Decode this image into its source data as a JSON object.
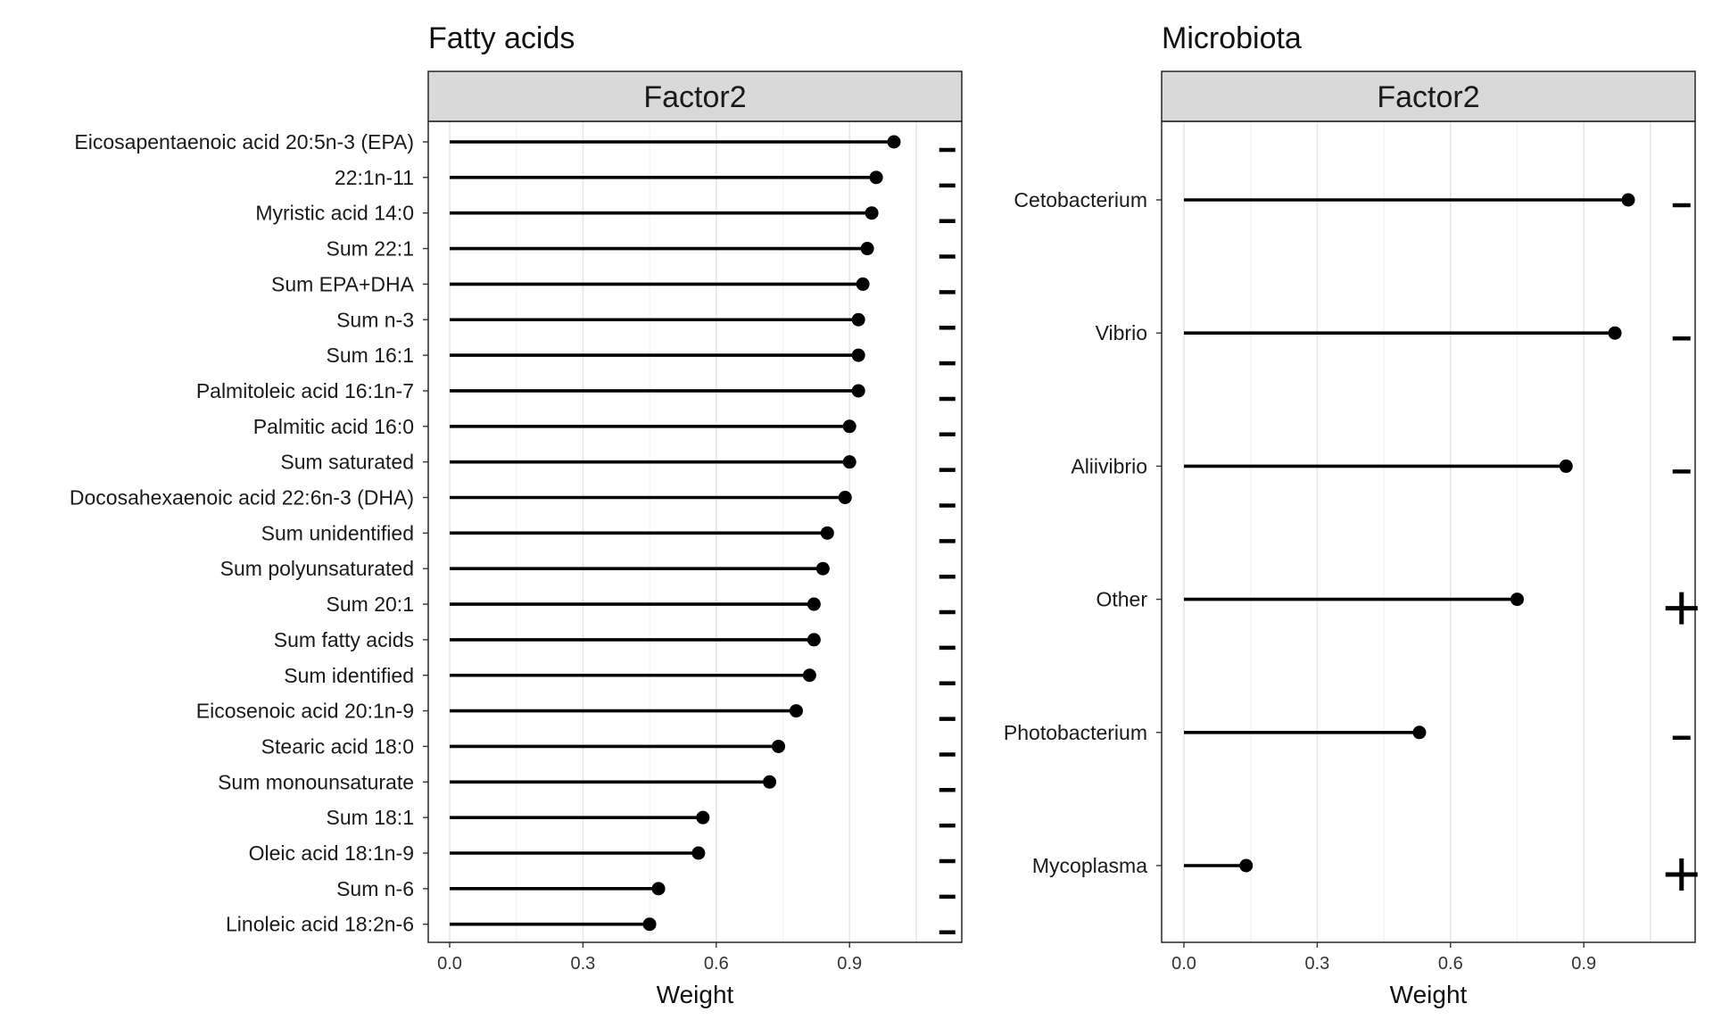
{
  "chart_data": [
    {
      "type": "lollipop",
      "title": "Fatty acids",
      "facet": "Factor2",
      "xlabel": "Weight",
      "ylabel": "",
      "xlim": [
        -0.05,
        1.15
      ],
      "xticks": [
        0.0,
        0.3,
        0.6,
        0.9
      ],
      "xtick_labels": [
        "0.0",
        "0.3",
        "0.6",
        "0.9"
      ],
      "grid": true,
      "categories": [
        "Eicosapentaenoic acid 20:5n-3 (EPA)",
        "22:1n-11",
        "Myristic acid 14:0",
        "Sum 22:1",
        "Sum EPA+DHA",
        "Sum n-3",
        "Sum 16:1",
        "Palmitoleic acid 16:1n-7",
        "Palmitic acid 16:0",
        "Sum saturated",
        "Docosahexaenoic acid 22:6n-3 (DHA)",
        "Sum unidentified",
        "Sum polyunsaturated",
        "Sum 20:1",
        "Sum fatty acids",
        "Sum identified",
        "Eicosenoic acid 20:1n-9",
        "Stearic acid 18:0",
        "Sum monounsaturate",
        "Sum 18:1",
        "Oleic acid 18:1n-9",
        "Sum n-6",
        "Linoleic acid 18:2n-6"
      ],
      "values": [
        1.0,
        0.96,
        0.95,
        0.94,
        0.93,
        0.92,
        0.92,
        0.92,
        0.9,
        0.9,
        0.89,
        0.85,
        0.84,
        0.82,
        0.82,
        0.81,
        0.78,
        0.74,
        0.72,
        0.57,
        0.56,
        0.47,
        0.45
      ],
      "signs": [
        "-",
        "-",
        "-",
        "-",
        "-",
        "-",
        "-",
        "-",
        "-",
        "-",
        "-",
        "-",
        "-",
        "-",
        "-",
        "-",
        "-",
        "-",
        "-",
        "-",
        "-",
        "-",
        "-"
      ]
    },
    {
      "type": "lollipop",
      "title": "Microbiota",
      "facet": "Factor2",
      "xlabel": "Weight",
      "ylabel": "",
      "xlim": [
        -0.05,
        1.15
      ],
      "xticks": [
        0.0,
        0.3,
        0.6,
        0.9
      ],
      "xtick_labels": [
        "0.0",
        "0.3",
        "0.6",
        "0.9"
      ],
      "grid": true,
      "categories": [
        "Cetobacterium",
        "Vibrio",
        "Aliivibrio",
        "Other",
        "Photobacterium",
        "Mycoplasma"
      ],
      "values": [
        1.0,
        0.97,
        0.86,
        0.75,
        0.53,
        0.14
      ],
      "signs": [
        "-",
        "-",
        "-",
        "+",
        "-",
        "+"
      ]
    }
  ],
  "colors": {
    "strip_fill": "#d9d9d9",
    "panel_border": "#333333",
    "grid_major": "#e6e6e6",
    "grid_minor": "#f2f2f2",
    "lollipop": "#000000",
    "background": "#ffffff"
  }
}
